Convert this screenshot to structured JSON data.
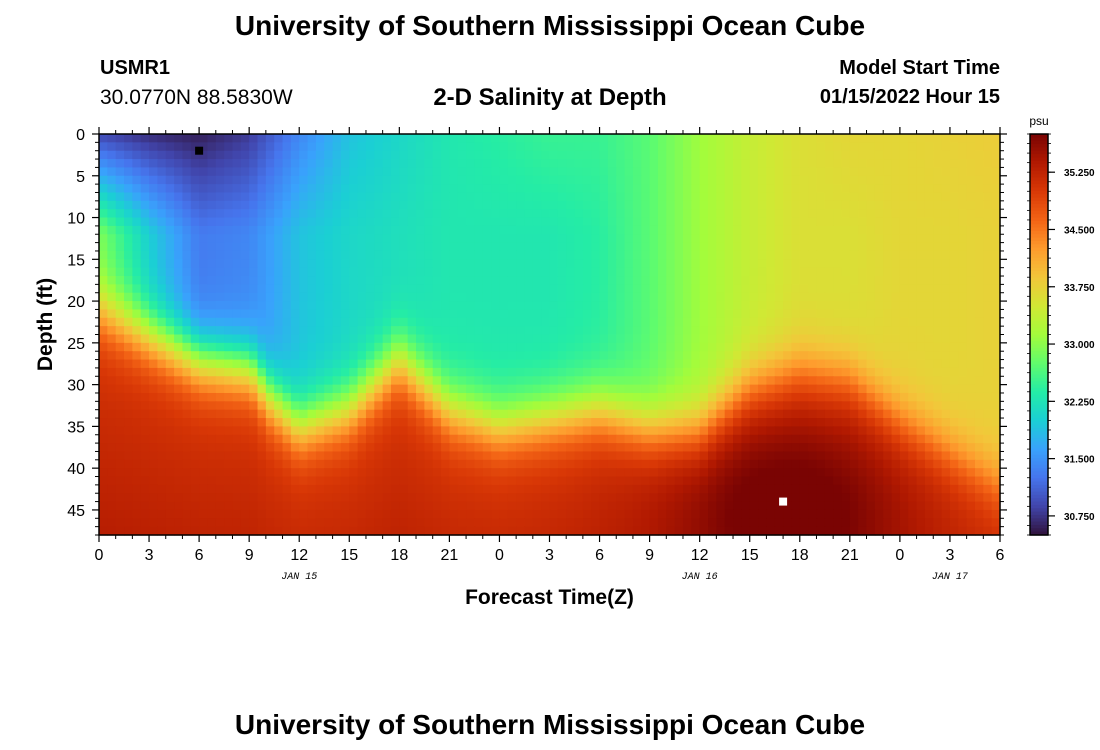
{
  "header": {
    "title": "University of Southern Mississippi Ocean Cube",
    "station_id": "USMR1",
    "station_coords": "30.0770N  88.5830W",
    "chart_title": "2-D Salinity at Depth",
    "start_label": "Model Start Time",
    "start_value": "01/15/2022 Hour 15"
  },
  "footer": {
    "title": "University of Southern Mississippi Ocean Cube"
  },
  "chart_data": {
    "type": "heatmap",
    "title": "2-D Salinity at Depth",
    "xlabel": "Forecast Time(Z)",
    "ylabel": "Depth (ft)",
    "x_tick_labels": [
      "0",
      "3",
      "6",
      "9",
      "12",
      "15",
      "18",
      "21",
      "0",
      "3",
      "6",
      "9",
      "12",
      "15",
      "18",
      "21",
      "0",
      "3",
      "6"
    ],
    "x_hours": [
      0,
      54
    ],
    "date_labels": [
      {
        "text": "JAN 15",
        "hour": 12
      },
      {
        "text": "JAN 16",
        "hour": 36
      },
      {
        "text": "JAN 17",
        "hour": 51
      }
    ],
    "y_tick_labels": [
      "0",
      "5",
      "10",
      "15",
      "20",
      "25",
      "30",
      "35",
      "40",
      "45"
    ],
    "ylim": [
      0,
      48
    ],
    "y_inverted": true,
    "colorbar": {
      "unit": "psu",
      "range": [
        30.5,
        35.75
      ],
      "tick_labels": [
        "35.250",
        "34.500",
        "33.750",
        "33.000",
        "32.250",
        "31.500",
        "30.750"
      ],
      "tick_values": [
        35.25,
        34.5,
        33.75,
        33.0,
        32.25,
        31.5,
        30.75
      ],
      "colormap": [
        "#30123b",
        "#4145ab",
        "#4675ed",
        "#39a2fc",
        "#1bcfd4",
        "#24eca6",
        "#61fc6c",
        "#a4fc3b",
        "#d1e834",
        "#f3c63a",
        "#fe9b2d",
        "#f36315",
        "#d93806",
        "#b11901",
        "#7a0403"
      ]
    },
    "markers": [
      {
        "hour": 6,
        "depth": 2,
        "color": "#000000",
        "label": "min"
      },
      {
        "hour": 41,
        "depth": 44,
        "color": "#ffffff",
        "label": "max"
      }
    ],
    "salinity_ranges": {
      "surface_min": 30.6,
      "surface_end": 33.8,
      "bottom_max": 35.7,
      "bottom_typical": 35.0
    },
    "shallow_profile": {
      "hours": [
        0,
        3,
        6,
        9,
        12,
        15,
        18,
        21,
        24,
        27,
        30,
        33,
        36,
        39,
        42,
        45,
        48,
        51,
        54
      ],
      "salinity": [
        30.9,
        30.7,
        30.6,
        30.8,
        31.4,
        31.9,
        32.1,
        32.3,
        32.4,
        32.5,
        32.5,
        32.7,
        33.1,
        33.4,
        33.6,
        33.7,
        33.7,
        33.75,
        33.8
      ]
    },
    "mid_profile": {
      "hours": [
        0,
        3,
        6,
        9,
        12,
        15,
        18,
        21,
        24,
        27,
        30,
        33,
        36,
        39,
        42,
        45,
        48,
        51,
        54
      ],
      "salinity": [
        32.9,
        32.0,
        31.3,
        31.4,
        31.9,
        32.1,
        32.2,
        32.3,
        32.3,
        32.3,
        32.4,
        32.7,
        33.1,
        33.4,
        33.6,
        33.6,
        33.7,
        33.7,
        33.75
      ]
    },
    "halocline_depth": {
      "hours": [
        0,
        3,
        6,
        9,
        9.5,
        10,
        12,
        15,
        18,
        21,
        24,
        27,
        30,
        33,
        36,
        39,
        42,
        45,
        48,
        51,
        54
      ],
      "depth": [
        21,
        24,
        27,
        28,
        29,
        31,
        35,
        33,
        27,
        33,
        35,
        34,
        33,
        35,
        35,
        30,
        28,
        29,
        34,
        38,
        42
      ]
    }
  }
}
